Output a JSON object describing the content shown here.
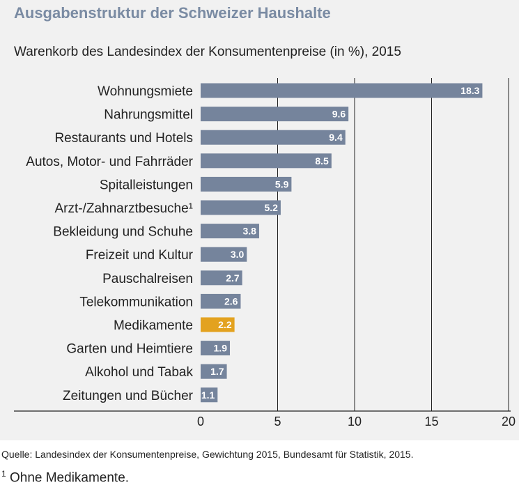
{
  "header": {
    "title": "Ausgabenstruktur der Schweizer Haushalte",
    "subtitle": "Warenkorb des Landesindex der Konsumentenpreise (in %), 2015"
  },
  "footer": {
    "source": "Quelle: Landesindex der Konsumentenpreise, Gewichtung 2015, Bundesamt für Statistik, 2015.",
    "footnote_mark": "1",
    "footnote_text": "Ohne Medikamente."
  },
  "colors": {
    "bar": "#75849c",
    "highlight": "#e3a21f",
    "panel": "#f1f1f1",
    "title": "#7a8ba3"
  },
  "chart_data": {
    "type": "bar",
    "orientation": "horizontal",
    "categories": [
      "Wohnungsmiete",
      "Nahrungsmittel",
      "Restaurants und Hotels",
      "Autos, Motor- und Fahrräder",
      "Spitalleistungen",
      "Arzt-/Zahnarztbesuche¹",
      "Bekleidung und Schuhe",
      "Freizeit und Kultur",
      "Pauschalreisen",
      "Telekommunikation",
      "Medikamente",
      "Garten und Heimtiere",
      "Alkohol und Tabak",
      "Zeitungen und Bücher"
    ],
    "values": [
      18.3,
      9.6,
      9.4,
      8.5,
      5.9,
      5.2,
      3.8,
      3.0,
      2.7,
      2.6,
      2.2,
      1.9,
      1.7,
      1.1
    ],
    "value_labels": [
      "18.3",
      "9.6",
      "9.4",
      "8.5",
      "5.9",
      "5.2",
      "3.8",
      "3.0",
      "2.7",
      "2.6",
      "2.2",
      "1.9",
      "1.7",
      "1.1"
    ],
    "highlighted_category": "Medikamente",
    "xlim": [
      0,
      20
    ],
    "xticks": [
      0,
      5,
      10,
      15,
      20
    ],
    "xtick_labels": [
      "0",
      "5",
      "10",
      "15",
      "20"
    ],
    "grid": "vertical"
  }
}
